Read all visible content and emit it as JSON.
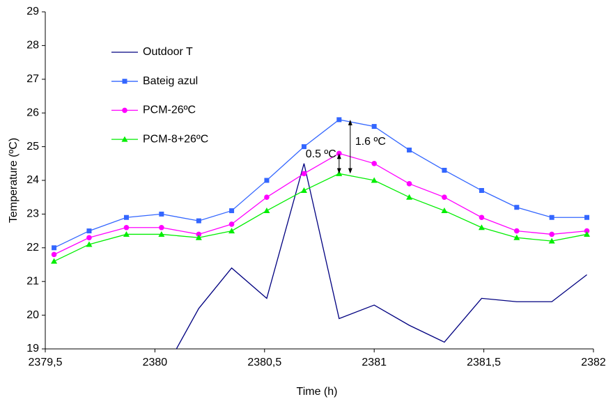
{
  "chart_data": {
    "type": "line",
    "x_label": "Time (h)",
    "y_label": "Temperature (ºC)",
    "x": [
      2379.54,
      2379.7,
      2379.87,
      2380.03,
      2380.2,
      2380.35,
      2380.51,
      2380.68,
      2380.84,
      2381.0,
      2381.16,
      2381.32,
      2381.49,
      2381.65,
      2381.81,
      2381.97
    ],
    "series": [
      {
        "name": "Outdoor T",
        "color": "#000080",
        "marker": "none",
        "values": [
          null,
          null,
          null,
          18.2,
          20.2,
          21.4,
          20.5,
          24.5,
          19.9,
          20.3,
          19.7,
          19.2,
          20.5,
          20.4,
          20.4,
          21.2
        ]
      },
      {
        "name": "Bateig azul",
        "color": "#3366ff",
        "marker": "square",
        "values": [
          22.0,
          22.5,
          22.9,
          23.0,
          22.8,
          23.1,
          24.0,
          25.0,
          25.8,
          25.6,
          24.9,
          24.3,
          23.7,
          23.2,
          22.9,
          22.9
        ]
      },
      {
        "name": "PCM-26ºC",
        "color": "#ff00ff",
        "marker": "circle",
        "values": [
          21.8,
          22.3,
          22.6,
          22.6,
          22.4,
          22.7,
          23.5,
          24.2,
          24.8,
          24.5,
          23.9,
          23.5,
          22.9,
          22.5,
          22.4,
          22.5
        ]
      },
      {
        "name": "PCM-8+26ºC",
        "color": "#00ee00",
        "marker": "triangle",
        "values": [
          21.6,
          22.1,
          22.4,
          22.4,
          22.3,
          22.5,
          23.1,
          23.7,
          24.2,
          24.0,
          23.5,
          23.1,
          22.6,
          22.3,
          22.2,
          22.4
        ]
      }
    ],
    "annotations": [
      "0.5 ºC",
      "1.6 ºC"
    ],
    "xlim": [
      2379.5,
      2382
    ],
    "xticks": [
      {
        "value": 2379.5,
        "label": "2379,5"
      },
      2380,
      {
        "value": 2380.5,
        "label": "2380,5"
      },
      2381,
      {
        "value": 2381.5,
        "label": "2381,5"
      },
      2382
    ],
    "ylim": [
      19,
      29
    ],
    "yticks": [
      19,
      20,
      21,
      22,
      23,
      24,
      25,
      26,
      27,
      28,
      29
    ],
    "grid": false,
    "legend": "upper left"
  }
}
